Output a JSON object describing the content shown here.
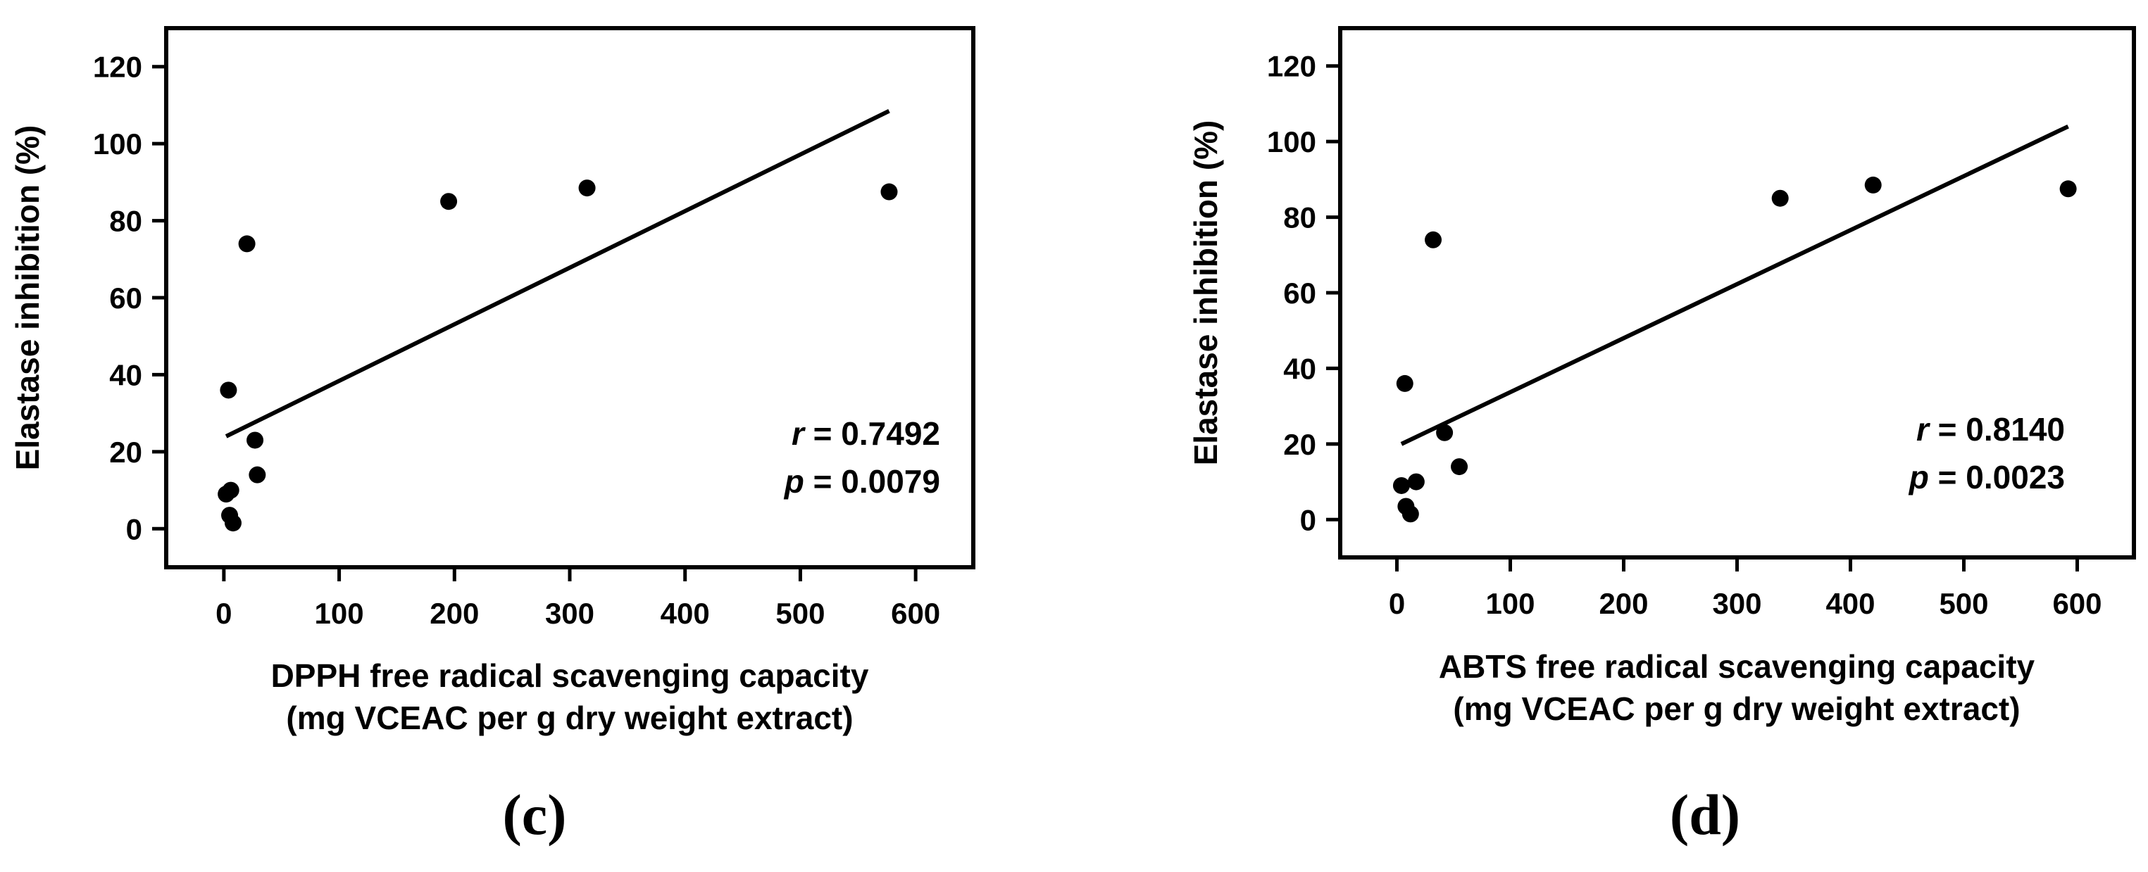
{
  "chart_data": [
    {
      "type": "scatter",
      "panel_label": "(c)",
      "ylabel": "Elastase inhibition (%)",
      "xlabel_line1": "DPPH  free radical scavenging capacity",
      "xlabel_line2": "(mg VCEAC per g dry weight extract)",
      "xlim": [
        -50,
        650
      ],
      "ylim": [
        -10,
        130
      ],
      "xticks": [
        0,
        100,
        200,
        300,
        400,
        500,
        600
      ],
      "yticks": [
        0,
        20,
        40,
        60,
        80,
        100,
        120
      ],
      "points": [
        {
          "x": 2,
          "y": 9
        },
        {
          "x": 6,
          "y": 10
        },
        {
          "x": 4,
          "y": 36
        },
        {
          "x": 5,
          "y": 3.5
        },
        {
          "x": 8,
          "y": 1.5
        },
        {
          "x": 20,
          "y": 74
        },
        {
          "x": 27,
          "y": 23
        },
        {
          "x": 29,
          "y": 14
        },
        {
          "x": 195,
          "y": 85
        },
        {
          "x": 315,
          "y": 88.5
        },
        {
          "x": 577,
          "y": 87.5
        }
      ],
      "fit_line": {
        "x": [
          2,
          577
        ],
        "y": [
          24,
          108.5
        ]
      },
      "annotation": {
        "r_symbol": "r",
        "r_text": " = 0.7492",
        "p_symbol": "p",
        "p_text": " = 0.0079"
      }
    },
    {
      "type": "scatter",
      "panel_label": "(d)",
      "ylabel": "Elastase inhibition (%)",
      "xlabel_line1": "ABTS  free radical scavenging capacity",
      "xlabel_line2": "(mg VCEAC per g dry weight extract)",
      "xlim": [
        -50,
        650
      ],
      "ylim": [
        -10,
        130
      ],
      "xticks": [
        0,
        100,
        200,
        300,
        400,
        500,
        600
      ],
      "yticks": [
        0,
        20,
        40,
        60,
        80,
        100,
        120
      ],
      "points": [
        {
          "x": 4,
          "y": 9
        },
        {
          "x": 17,
          "y": 10
        },
        {
          "x": 7,
          "y": 36
        },
        {
          "x": 8,
          "y": 3.5
        },
        {
          "x": 12,
          "y": 1.5
        },
        {
          "x": 32,
          "y": 74
        },
        {
          "x": 42,
          "y": 23
        },
        {
          "x": 55,
          "y": 14
        },
        {
          "x": 338,
          "y": 85
        },
        {
          "x": 420,
          "y": 88.5
        },
        {
          "x": 592,
          "y": 87.5
        }
      ],
      "fit_line": {
        "x": [
          4,
          592
        ],
        "y": [
          20,
          104
        ]
      },
      "annotation": {
        "r_symbol": "r",
        "r_text": " = 0.8140",
        "p_symbol": "p",
        "p_text": " = 0.0023"
      }
    }
  ]
}
